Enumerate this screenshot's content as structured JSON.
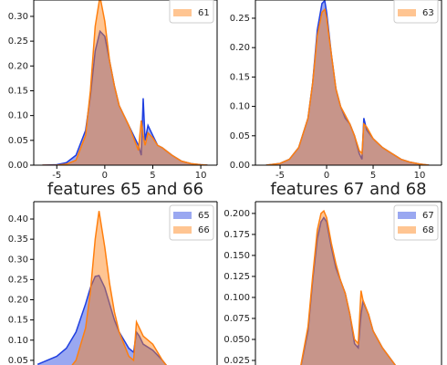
{
  "chart_data": [
    {
      "type": "area",
      "x": [
        -6.5,
        -5,
        -4,
        -3,
        -2,
        -1.5,
        -1,
        -0.5,
        0,
        0.5,
        1,
        1.5,
        2,
        2.5,
        3,
        3.5,
        3.8,
        4,
        4.2,
        4.5,
        5,
        5.5,
        6,
        7,
        8,
        9,
        10,
        10.7
      ],
      "series": [
        {
          "color": "#1f3fe0",
          "values": [
            0,
            0.001,
            0.005,
            0.02,
            0.07,
            0.14,
            0.23,
            0.27,
            0.26,
            0.21,
            0.16,
            0.12,
            0.1,
            0.08,
            0.06,
            0.04,
            0.02,
            0.135,
            0.05,
            0.08,
            0.06,
            0.04,
            0.035,
            0.02,
            0.008,
            0.003,
            0.001,
            0
          ]
        },
        {
          "name": "61",
          "color": "#ff7f0e",
          "values": [
            0,
            0,
            0.002,
            0.01,
            0.06,
            0.15,
            0.28,
            0.34,
            0.29,
            0.21,
            0.16,
            0.12,
            0.1,
            0.08,
            0.055,
            0.03,
            0.09,
            0.06,
            0.04,
            0.065,
            0.055,
            0.04,
            0.035,
            0.02,
            0.008,
            0.003,
            0.001,
            0
          ]
        }
      ],
      "xlim": [
        -7.4,
        11.7
      ],
      "xticks": [
        -5,
        0,
        5,
        10
      ],
      "ylim": [
        0,
        0.333
      ],
      "yticks": [
        {
          "value": 0,
          "label": "0.00"
        },
        0.05,
        {
          "value": 0.1,
          "label": "0.10"
        },
        0.15,
        {
          "value": 0.2,
          "label": "0.20"
        },
        0.25,
        {
          "value": 0.3,
          "label": "0.30"
        }
      ],
      "legend": "upper right"
    },
    {
      "type": "area",
      "x": [
        -6.5,
        -5,
        -4,
        -3,
        -2,
        -1.5,
        -1,
        -0.5,
        -0.2,
        0,
        0.5,
        1,
        1.5,
        2,
        2.5,
        3,
        3.5,
        3.8,
        4,
        4.3,
        5,
        6,
        7,
        8,
        9,
        10,
        11
      ],
      "series": [
        {
          "color": "#1f3fe0",
          "values": [
            0,
            0.003,
            0.01,
            0.03,
            0.08,
            0.14,
            0.23,
            0.275,
            0.28,
            0.26,
            0.19,
            0.13,
            0.1,
            0.08,
            0.07,
            0.05,
            0.02,
            0.01,
            0.08,
            0.06,
            0.045,
            0.03,
            0.02,
            0.01,
            0.005,
            0.002,
            0
          ]
        },
        {
          "name": "63",
          "color": "#ff7f0e",
          "values": [
            0,
            0.003,
            0.01,
            0.03,
            0.08,
            0.14,
            0.22,
            0.26,
            0.265,
            0.25,
            0.19,
            0.13,
            0.1,
            0.085,
            0.07,
            0.05,
            0.025,
            0.02,
            0.07,
            0.065,
            0.045,
            0.03,
            0.02,
            0.01,
            0.005,
            0.002,
            0
          ]
        }
      ],
      "xlim": [
        -7.65,
        12.35
      ],
      "xticks": [
        -5,
        0,
        5,
        10
      ],
      "ylim": [
        0,
        0.281
      ],
      "yticks": [
        {
          "value": 0,
          "label": "0.00"
        },
        0.05,
        {
          "value": 0.1,
          "label": "0.10"
        },
        0.15,
        {
          "value": 0.2,
          "label": "0.20"
        },
        0.25
      ],
      "legend": "upper right"
    },
    {
      "type": "area",
      "title": "features 65 and 66",
      "x": [
        -7,
        -5,
        -4,
        -3,
        -2,
        -1.5,
        -1,
        -0.6,
        0,
        0.5,
        1,
        1.5,
        2,
        2.5,
        3,
        3.3,
        3.6,
        4,
        5,
        6,
        7
      ],
      "series": [
        {
          "name": "65",
          "color": "#1f3fe0",
          "values": [
            0.04,
            0.06,
            0.08,
            0.12,
            0.19,
            0.23,
            0.258,
            0.26,
            0.23,
            0.19,
            0.15,
            0.12,
            0.1,
            0.08,
            0.07,
            0.12,
            0.11,
            0.09,
            0.075,
            0.05,
            0.02
          ]
        },
        {
          "name": "66",
          "color": "#ff7f0e",
          "values": [
            0,
            0.01,
            0.02,
            0.05,
            0.13,
            0.22,
            0.35,
            0.42,
            0.33,
            0.24,
            0.17,
            0.12,
            0.09,
            0.06,
            0.05,
            0.145,
            0.13,
            0.11,
            0.09,
            0.05,
            0.02
          ]
        }
      ],
      "xlim": [
        -7.4,
        11.7
      ],
      "ylim": [
        0,
        0.443
      ],
      "yticks": [
        0.05,
        {
          "value": 0.1,
          "label": "0.10"
        },
        0.15,
        {
          "value": 0.2,
          "label": "0.20"
        },
        0.25,
        {
          "value": 0.3,
          "label": "0.30"
        },
        0.35,
        {
          "value": 0.4,
          "label": "0.40"
        }
      ],
      "legend": "upper right"
    },
    {
      "type": "area",
      "title": "features 67 and 68",
      "x": [
        -4,
        -3,
        -2,
        -1.5,
        -1,
        -0.6,
        -0.3,
        0,
        0.5,
        1,
        1.5,
        2,
        2.5,
        3,
        3.4,
        3.7,
        3.9,
        4.5,
        5,
        6,
        7,
        8
      ],
      "series": [
        {
          "name": "67",
          "color": "#1f3fe0",
          "values": [
            0,
            0.005,
            0.06,
            0.12,
            0.17,
            0.19,
            0.195,
            0.19,
            0.16,
            0.135,
            0.12,
            0.105,
            0.08,
            0.045,
            0.04,
            0.08,
            0.095,
            0.08,
            0.06,
            0.04,
            0.025,
            0.01
          ]
        },
        {
          "name": "68",
          "color": "#ff7f0e",
          "values": [
            0,
            0.005,
            0.065,
            0.125,
            0.18,
            0.2,
            0.203,
            0.195,
            0.165,
            0.14,
            0.12,
            0.105,
            0.08,
            0.05,
            0.045,
            0.108,
            0.097,
            0.08,
            0.06,
            0.04,
            0.025,
            0.01
          ]
        }
      ],
      "xlim": [
        -7.65,
        12.35
      ],
      "ylim": [
        0,
        0.214
      ],
      "yticks": [
        {
          "value": 0.025,
          "label": "0.025"
        },
        {
          "value": 0.05,
          "label": "0.050"
        },
        {
          "value": 0.075,
          "label": "0.075"
        },
        {
          "value": 0.1,
          "label": "0.100"
        },
        {
          "value": 0.125,
          "label": "0.125"
        },
        {
          "value": 0.15,
          "label": "0.150"
        },
        {
          "value": 0.175,
          "label": "0.175"
        },
        {
          "value": 0.2,
          "label": "0.200"
        }
      ],
      "legend": "upper right"
    }
  ]
}
